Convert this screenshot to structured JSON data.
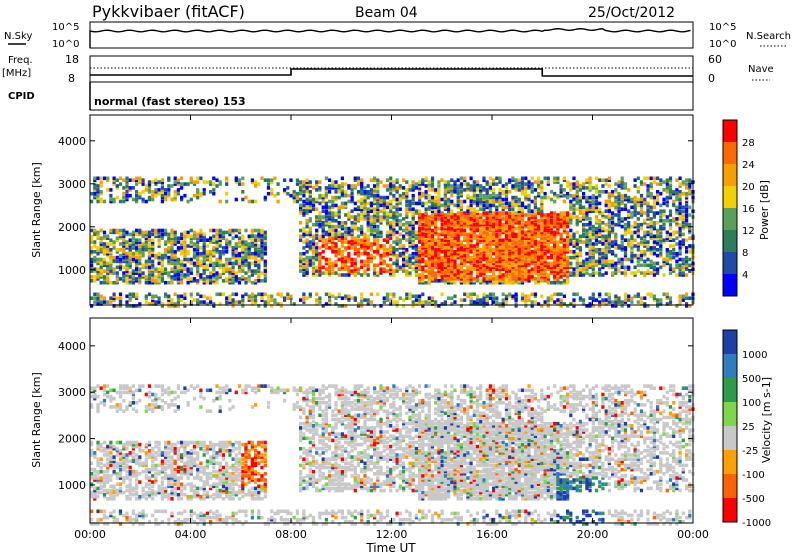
{
  "header": {
    "station": "Pykkvibaer (fitACF)",
    "beam": "Beam 04",
    "date": "25/Oct/2012"
  },
  "noise_panel": {
    "left_label": "N.Sky",
    "right_label": "N.Search",
    "left_ticks": [
      "10^5",
      "10^0"
    ],
    "right_ticks": [
      "10^5",
      "10^0"
    ]
  },
  "freq_panel": {
    "left_label_top": "Freq.",
    "left_label_bottom": "[MHz]",
    "left_ticks": [
      "18",
      "8"
    ],
    "right_label": "Nave",
    "right_ticks": [
      "60",
      "0"
    ]
  },
  "cpid_panel": {
    "label": "CPID",
    "text": "normal (fast stereo) 153"
  },
  "time_axis": {
    "label": "Time UT",
    "ticks": [
      "00:00",
      "04:00",
      "08:00",
      "12:00",
      "16:00",
      "20:00",
      "00:00"
    ]
  },
  "colors": {
    "power": [
      "#0000ff",
      "#1f4aa8",
      "#2e7d5a",
      "#5aa05a",
      "#f0d000",
      "#f5a000",
      "#ff6a00",
      "#ff0000"
    ],
    "velocity": [
      "#1f3fa8",
      "#2e7dbf",
      "#2e9a4a",
      "#7ed64a",
      "#c8c8c8",
      "#ffa000",
      "#ff6000",
      "#ff0000"
    ]
  },
  "chart_data": [
    {
      "type": "heatmap",
      "title": "Power",
      "ylabel": "Slant Range [km]",
      "xlabel": "",
      "x_ticks": [
        "00:00",
        "04:00",
        "08:00",
        "12:00",
        "16:00",
        "20:00",
        "00:00"
      ],
      "y_ticks": [
        "1000",
        "2000",
        "3000",
        "4000"
      ],
      "ylim": [
        180,
        4600
      ],
      "colorbar_label": "Power [dB]",
      "colorbar_ticks": [
        "4",
        "8",
        "12",
        "16",
        "20",
        "24",
        "28"
      ]
    },
    {
      "type": "heatmap",
      "title": "Velocity",
      "ylabel": "Slant Range [km]",
      "xlabel": "Time UT",
      "x_ticks": [
        "00:00",
        "04:00",
        "08:00",
        "12:00",
        "16:00",
        "20:00",
        "00:00"
      ],
      "y_ticks": [
        "1000",
        "2000",
        "3000",
        "4000"
      ],
      "ylim": [
        180,
        4600
      ],
      "colorbar_label": "Velocity [m s-1]",
      "colorbar_ticks": [
        "1000",
        "500",
        "100",
        "25",
        "-25",
        "-100",
        "-500",
        "-1000"
      ]
    }
  ]
}
